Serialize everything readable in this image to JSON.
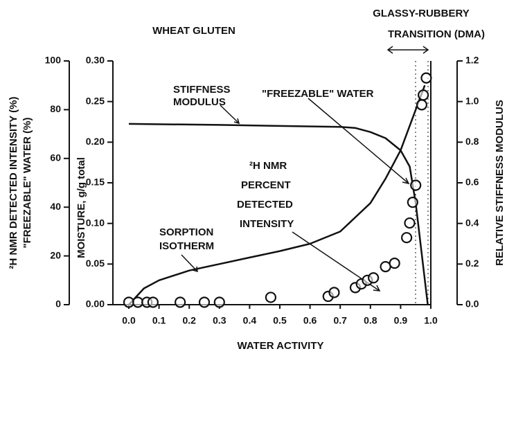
{
  "chart_data": {
    "type": "line",
    "title": "WHEAT GLUTEN",
    "annotations_top": [
      "GLASSY-RUBBERY",
      "TRANSITION (DMA)"
    ],
    "x_label": "WATER ACTIVITY",
    "y_label": [
      "²H NMR DETECTED INTENSITY (%)",
      "\"FREEZABLE\" WATER (%)"
    ],
    "y2_label": "MOISTURE, g/g total",
    "y3_label": "RELATIVE STIFFNESS MODULUS",
    "annotations": [
      "STIFFNESS",
      "MODULUS",
      "\"FREEZABLE\" WATER",
      "²H NMR",
      "PERCENT",
      "DETECTED",
      "INTENSITY",
      "SORPTION",
      "ISOTHERM"
    ],
    "xlim": [
      0,
      1
    ],
    "xticks": [
      {
        "value": 0,
        "label": "0.0"
      },
      0.1,
      0.2,
      0.3,
      0.4,
      0.5,
      0.6,
      0.7,
      0.8,
      0.9,
      {
        "value": 1,
        "label": "1.0"
      }
    ],
    "ylim": [
      0,
      100
    ],
    "yticks": [
      0,
      20,
      40,
      60,
      80,
      100
    ],
    "y2lim": [
      0,
      0.3
    ],
    "y2ticks": [
      {
        "value": 0,
        "label": "0.00"
      },
      0.05,
      {
        "value": 0.1,
        "label": "0.10"
      },
      0.15,
      {
        "value": 0.2,
        "label": "0.20"
      },
      0.25,
      {
        "value": 0.3,
        "label": "0.30"
      }
    ],
    "y3lim": [
      0,
      1.2
    ],
    "y3ticks": [
      {
        "value": 0,
        "label": "0.0"
      },
      0.2,
      0.4,
      0.6,
      0.8,
      {
        "value": 1,
        "label": "1.0"
      },
      1.2
    ],
    "series": [
      {
        "axis": "y2",
        "style": "line",
        "color": "#111",
        "x": [
          0,
          0.02,
          0.05,
          0.1,
          0.2,
          0.3,
          0.4,
          0.5,
          0.6,
          0.7,
          0.8,
          0.85,
          0.9,
          0.95,
          0.98
        ],
        "values": [
          0,
          0.008,
          0.02,
          0.03,
          0.042,
          0.05,
          0.058,
          0.066,
          0.075,
          0.09,
          0.125,
          0.155,
          0.19,
          0.24,
          0.27
        ]
      },
      {
        "axis": "y3",
        "style": "line",
        "color": "#111",
        "x": [
          0,
          0.3,
          0.5,
          0.7,
          0.75,
          0.8,
          0.85,
          0.9,
          0.93,
          0.95,
          0.97,
          0.99
        ],
        "values": [
          0.89,
          0.885,
          0.88,
          0.875,
          0.87,
          0.85,
          0.82,
          0.76,
          0.68,
          0.5,
          0.25,
          0
        ]
      },
      {
        "axis": "y",
        "style": "scatter",
        "color": "#111",
        "x": [
          0,
          0.03,
          0.06,
          0.08,
          0.17,
          0.25,
          0.3,
          0.47,
          0.66,
          0.68,
          0.75,
          0.77,
          0.79,
          0.81,
          0.85,
          0.88,
          0.92,
          0.93,
          0.94,
          0.95,
          0.97,
          0.975,
          0.985
        ],
        "values": [
          1,
          1,
          1,
          1,
          1,
          1,
          1,
          3,
          3.4,
          5,
          7,
          8.5,
          10,
          11,
          15.6,
          17,
          27.5,
          33.5,
          42,
          49,
          82,
          86,
          93
        ]
      }
    ]
  }
}
